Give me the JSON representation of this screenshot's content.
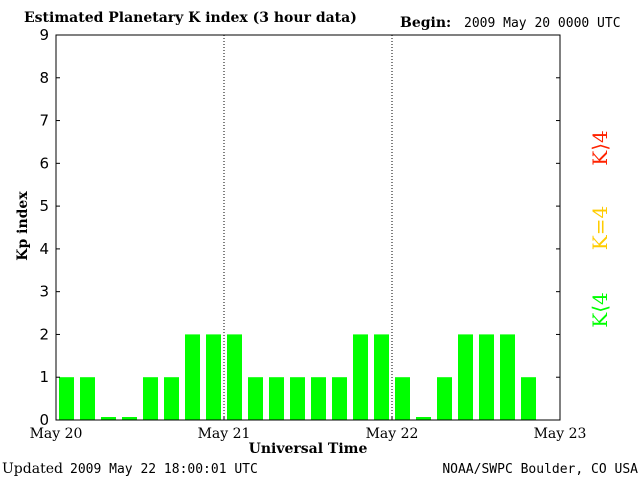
{
  "chart_data": {
    "type": "bar",
    "title": "Estimated Planetary K index (3 hour data)",
    "begin_label": "Begin:",
    "begin_value": "2009 May 20 0000 UTC",
    "ylabel": "Kp index",
    "xlabel": "Universal Time",
    "ylim": [
      0,
      9
    ],
    "y_ticks": [
      "0",
      "1",
      "2",
      "3",
      "4",
      "5",
      "6",
      "7",
      "8",
      "9"
    ],
    "x_tick_labels": [
      "May 20",
      "May 21",
      "May 22",
      "May 23"
    ],
    "bars_per_day": 8,
    "days": 3,
    "values": [
      1,
      1,
      0,
      0,
      1,
      1,
      2,
      2,
      2,
      1,
      1,
      1,
      1,
      1,
      2,
      2,
      1,
      0,
      1,
      2,
      2,
      2,
      1
    ],
    "colors": {
      "below_4": "#00ff00",
      "equal_4": "#ffcc00",
      "above_4": "#ff2200",
      "day_divider": "#000000"
    },
    "legend": [
      {
        "label": "K<4",
        "text": "K⟨4",
        "color": "#00ff00"
      },
      {
        "label": "K=4",
        "text": "K=4",
        "color": "#ffcc00"
      },
      {
        "label": "K>4",
        "text": "K⟩4",
        "color": "#ff2200"
      }
    ]
  },
  "footer": {
    "updated_label": "Updated",
    "updated_value": "2009 May 22 18:00:01 UTC",
    "source": "NOAA/SWPC Boulder, CO USA"
  }
}
